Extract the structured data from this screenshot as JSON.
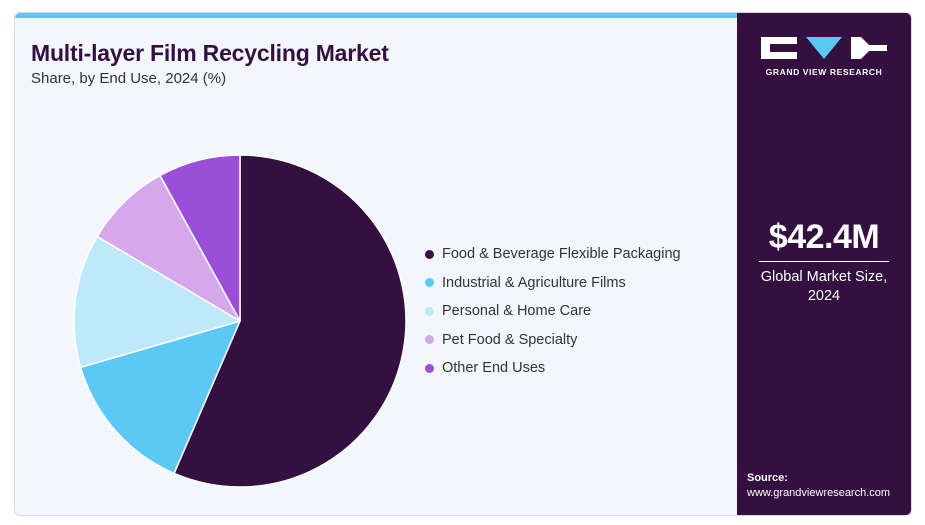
{
  "header": {
    "title": "Multi-layer Film Recycling Market",
    "subtitle": "Share, by End Use, 2024 (%)"
  },
  "chart_data": {
    "type": "pie",
    "title": "Multi-layer Film Recycling Market",
    "subtitle": "Share, by End Use, 2024 (%)",
    "start_angle_deg": 0,
    "direction": "clockwise",
    "legend_position": "right",
    "slices": [
      {
        "label": "Food & Beverage Flexible Packaging",
        "value": 56.5,
        "color": "#33103f"
      },
      {
        "label": "Industrial & Agriculture Films",
        "value": 14.0,
        "color": "#5ec8f5"
      },
      {
        "label": "Personal & Home Care",
        "value": 13.0,
        "color": "#bde9f9"
      },
      {
        "label": "Pet Food & Specialty",
        "value": 8.5,
        "color": "#d4a8ea"
      },
      {
        "label": "Other End Uses",
        "value": 8.0,
        "color": "#9b4ed8"
      }
    ]
  },
  "sidebar": {
    "brand_text": "GRAND VIEW RESEARCH",
    "market_size_value": "$42.4M",
    "market_size_label": "Global Market Size, 2024",
    "source_label": "Source:",
    "source_url": "www.grandviewresearch.com",
    "colors": {
      "background": "#33103f",
      "text": "#ffffff",
      "accent": "#5ec8f5"
    }
  }
}
